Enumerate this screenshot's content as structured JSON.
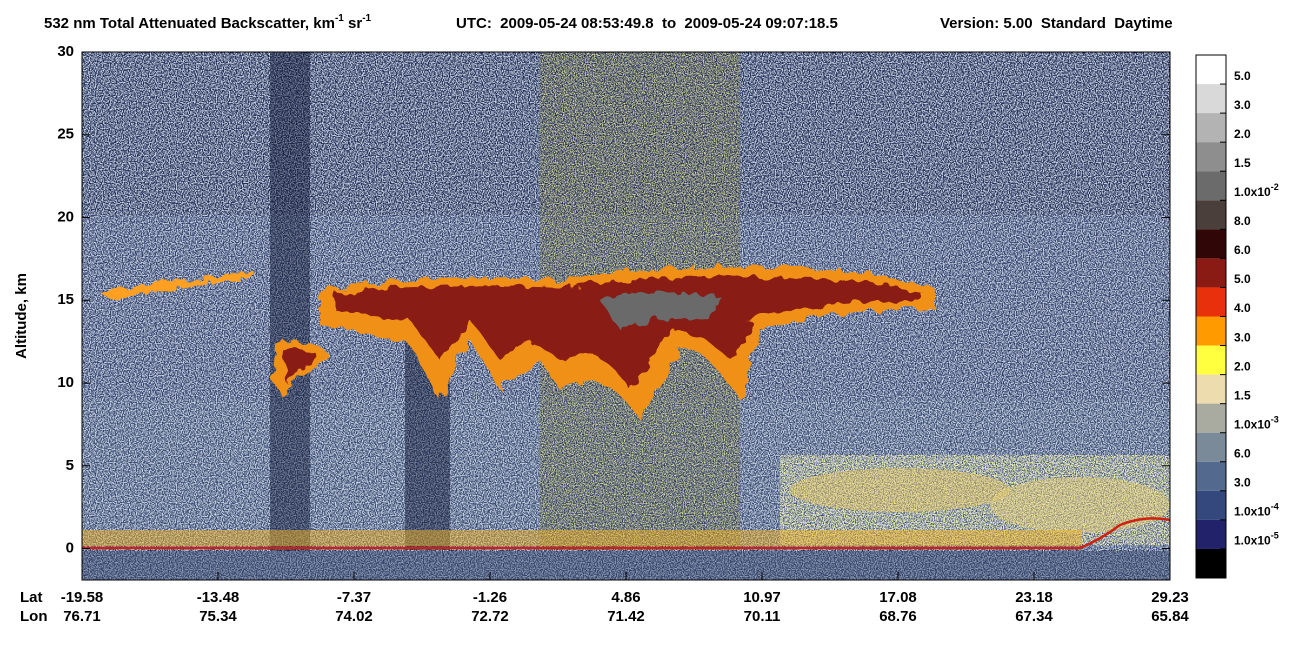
{
  "title_parts": [
    "532 nm Total Attenuated Backscatter, km",
    "-1",
    " sr",
    "-1"
  ],
  "utc": "UTC:  2009-05-24 08:53:49.8  to  2009-05-24 09:07:18.5",
  "version": "Version: 5.00  Standard  Daytime",
  "chart_data": {
    "type": "curtain",
    "ylabel": "Altitude, km",
    "ylim": [
      -1.9,
      30
    ],
    "yticks": [
      0,
      5,
      10,
      15,
      20,
      25,
      30
    ],
    "x_rows": [
      {
        "name": "Lat",
        "values": [
          -19.58,
          -13.48,
          -7.37,
          -1.26,
          4.86,
          10.97,
          17.08,
          23.18,
          29.23
        ]
      },
      {
        "name": "Lon",
        "values": [
          76.71,
          75.34,
          74.02,
          72.72,
          71.42,
          70.11,
          68.76,
          67.34,
          65.84
        ]
      }
    ]
  },
  "colorbar": {
    "colors": [
      "#ffffff",
      "#d9d9d9",
      "#b3b3b3",
      "#8e8e8e",
      "#6b6b6b",
      "#4a3f3b",
      "#300606",
      "#8a1a14",
      "#e8300c",
      "#ff9a00",
      "#ffff40",
      "#ecdcae",
      "#a9aaa0",
      "#7a8a98",
      "#536a8e",
      "#34487e",
      "#22226a",
      "#000000"
    ],
    "labels": [
      {
        "text": "5.0"
      },
      {
        "text": "3.0"
      },
      {
        "text": "2.0"
      },
      {
        "text": "1.5"
      },
      {
        "text": "1.0x10",
        "exp": "-2"
      },
      {
        "text": "8.0"
      },
      {
        "text": "6.0"
      },
      {
        "text": "5.0"
      },
      {
        "text": "4.0"
      },
      {
        "text": "3.0"
      },
      {
        "text": "2.0"
      },
      {
        "text": "1.5"
      },
      {
        "text": "1.0x10",
        "exp": "-3"
      },
      {
        "text": "6.0"
      },
      {
        "text": "3.0"
      },
      {
        "text": "1.0x10",
        "exp": "-4"
      },
      {
        "text": "1.0x10",
        "exp": "-5"
      }
    ]
  }
}
